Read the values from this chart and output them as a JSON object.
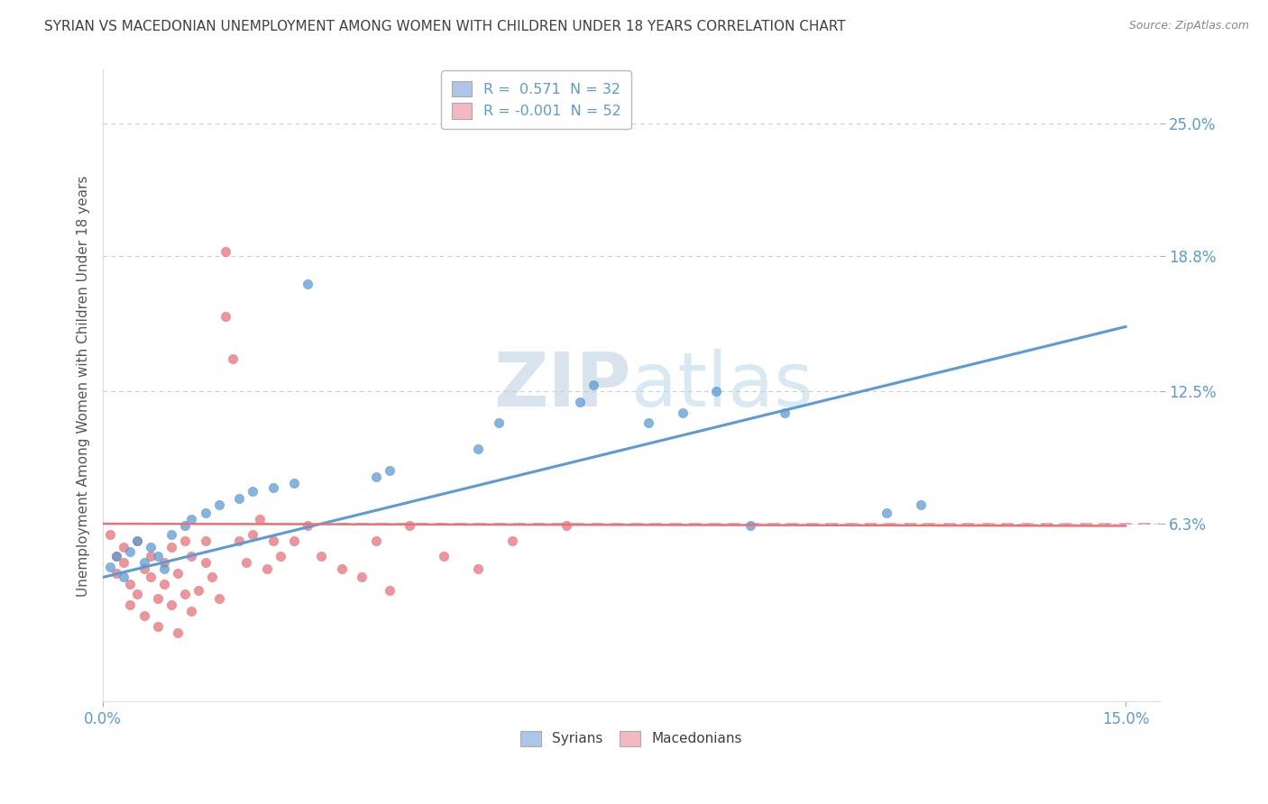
{
  "title": "SYRIAN VS MACEDONIAN UNEMPLOYMENT AMONG WOMEN WITH CHILDREN UNDER 18 YEARS CORRELATION CHART",
  "source": "Source: ZipAtlas.com",
  "ylabel": "Unemployment Among Women with Children Under 18 years",
  "ytick_values": [
    0.063,
    0.125,
    0.188,
    0.25
  ],
  "ytick_labels": [
    "6.3%",
    "12.5%",
    "18.8%",
    "25.0%"
  ],
  "xtick_values": [
    0.0,
    0.15
  ],
  "xtick_labels": [
    "0.0%",
    "15.0%"
  ],
  "xlim": [
    0.0,
    0.155
  ],
  "ylim": [
    -0.02,
    0.275
  ],
  "legend_items": [
    {
      "label": "R =  0.571  N = 32",
      "color": "#adc6e8"
    },
    {
      "label": "R = -0.001  N = 52",
      "color": "#f4b8c1"
    }
  ],
  "legend_bottom": [
    "Syrians",
    "Macedonians"
  ],
  "syrian_color": "#5b9bd5",
  "macedonian_color": "#e8727a",
  "syrian_scatter": [
    [
      0.001,
      0.043
    ],
    [
      0.002,
      0.048
    ],
    [
      0.003,
      0.038
    ],
    [
      0.004,
      0.05
    ],
    [
      0.005,
      0.055
    ],
    [
      0.006,
      0.045
    ],
    [
      0.007,
      0.052
    ],
    [
      0.008,
      0.048
    ],
    [
      0.009,
      0.042
    ],
    [
      0.01,
      0.058
    ],
    [
      0.012,
      0.062
    ],
    [
      0.013,
      0.065
    ],
    [
      0.015,
      0.068
    ],
    [
      0.017,
      0.072
    ],
    [
      0.02,
      0.075
    ],
    [
      0.022,
      0.078
    ],
    [
      0.025,
      0.08
    ],
    [
      0.028,
      0.082
    ],
    [
      0.03,
      0.175
    ],
    [
      0.04,
      0.085
    ],
    [
      0.042,
      0.088
    ],
    [
      0.055,
      0.098
    ],
    [
      0.058,
      0.11
    ],
    [
      0.07,
      0.12
    ],
    [
      0.072,
      0.128
    ],
    [
      0.08,
      0.11
    ],
    [
      0.085,
      0.115
    ],
    [
      0.09,
      0.125
    ],
    [
      0.095,
      0.062
    ],
    [
      0.1,
      0.115
    ],
    [
      0.115,
      0.068
    ],
    [
      0.12,
      0.072
    ]
  ],
  "macedonian_scatter": [
    [
      0.001,
      0.058
    ],
    [
      0.002,
      0.048
    ],
    [
      0.002,
      0.04
    ],
    [
      0.003,
      0.052
    ],
    [
      0.003,
      0.045
    ],
    [
      0.004,
      0.035
    ],
    [
      0.004,
      0.025
    ],
    [
      0.005,
      0.055
    ],
    [
      0.005,
      0.03
    ],
    [
      0.006,
      0.042
    ],
    [
      0.006,
      0.02
    ],
    [
      0.007,
      0.048
    ],
    [
      0.007,
      0.038
    ],
    [
      0.008,
      0.028
    ],
    [
      0.008,
      0.015
    ],
    [
      0.009,
      0.045
    ],
    [
      0.009,
      0.035
    ],
    [
      0.01,
      0.052
    ],
    [
      0.01,
      0.025
    ],
    [
      0.011,
      0.04
    ],
    [
      0.011,
      0.012
    ],
    [
      0.012,
      0.03
    ],
    [
      0.012,
      0.055
    ],
    [
      0.013,
      0.022
    ],
    [
      0.013,
      0.048
    ],
    [
      0.014,
      0.032
    ],
    [
      0.015,
      0.055
    ],
    [
      0.015,
      0.045
    ],
    [
      0.016,
      0.038
    ],
    [
      0.017,
      0.028
    ],
    [
      0.018,
      0.16
    ],
    [
      0.018,
      0.19
    ],
    [
      0.019,
      0.14
    ],
    [
      0.02,
      0.055
    ],
    [
      0.021,
      0.045
    ],
    [
      0.022,
      0.058
    ],
    [
      0.023,
      0.065
    ],
    [
      0.024,
      0.042
    ],
    [
      0.025,
      0.055
    ],
    [
      0.026,
      0.048
    ],
    [
      0.028,
      0.055
    ],
    [
      0.03,
      0.062
    ],
    [
      0.032,
      0.048
    ],
    [
      0.035,
      0.042
    ],
    [
      0.038,
      0.038
    ],
    [
      0.04,
      0.055
    ],
    [
      0.042,
      0.032
    ],
    [
      0.045,
      0.062
    ],
    [
      0.05,
      0.048
    ],
    [
      0.055,
      0.042
    ],
    [
      0.06,
      0.055
    ],
    [
      0.068,
      0.062
    ]
  ],
  "syrian_line": [
    [
      0.0,
      0.038
    ],
    [
      0.15,
      0.155
    ]
  ],
  "macedonian_line": [
    [
      0.0,
      0.063
    ],
    [
      0.15,
      0.062
    ]
  ],
  "title_color": "#404040",
  "axis_color": "#5b9bd5",
  "grid_color": "#cccccc",
  "background_color": "#ffffff",
  "watermark_color": "#d8e4f0"
}
